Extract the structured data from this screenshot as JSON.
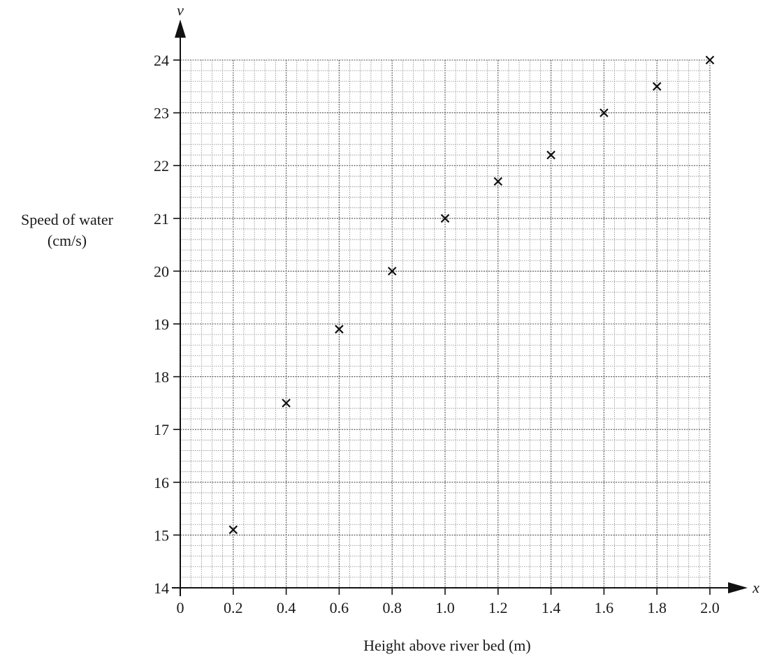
{
  "chart_data": {
    "type": "scatter",
    "title": "",
    "xlabel": "Height above river bed (m)",
    "ylabel_lines": [
      "Speed of water",
      "(cm/s)"
    ],
    "x_variable": "x",
    "y_variable": "v",
    "xlim": [
      0,
      2.0
    ],
    "ylim": [
      14,
      24
    ],
    "x_ticks": [
      "0",
      "0.2",
      "0.4",
      "0.6",
      "0.8",
      "1.0",
      "1.2",
      "1.4",
      "1.6",
      "1.8",
      "2.0"
    ],
    "y_ticks": [
      "14",
      "15",
      "16",
      "17",
      "18",
      "19",
      "20",
      "21",
      "22",
      "23",
      "24"
    ],
    "grid": true,
    "marker": "x",
    "points": [
      {
        "x": 0.2,
        "y": 15.1
      },
      {
        "x": 0.4,
        "y": 17.5
      },
      {
        "x": 0.6,
        "y": 18.9
      },
      {
        "x": 0.8,
        "y": 20.0
      },
      {
        "x": 1.0,
        "y": 21.0
      },
      {
        "x": 1.2,
        "y": 21.7
      },
      {
        "x": 1.4,
        "y": 22.2
      },
      {
        "x": 1.6,
        "y": 23.0
      },
      {
        "x": 1.8,
        "y": 23.5
      },
      {
        "x": 2.0,
        "y": 24.0
      }
    ]
  }
}
